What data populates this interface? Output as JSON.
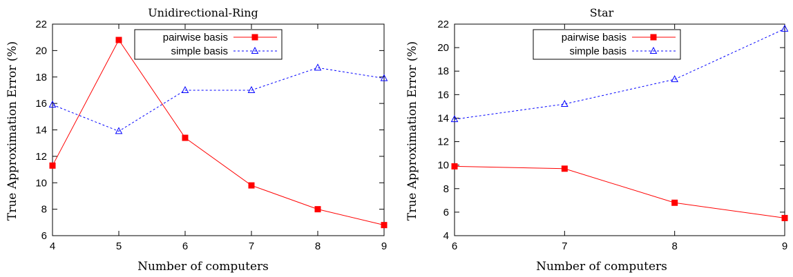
{
  "chart_data": [
    {
      "type": "line",
      "title": "Unidirectional-Ring",
      "xlabel": "Number of computers",
      "ylabel": "True Approximation Error (%)",
      "x": [
        4,
        5,
        6,
        7,
        8,
        9
      ],
      "xlim": [
        4,
        9
      ],
      "ylim": [
        6,
        22
      ],
      "xticks": [
        4,
        5,
        6,
        7,
        8,
        9
      ],
      "yticks": [
        6,
        8,
        10,
        12,
        14,
        16,
        18,
        20,
        22
      ],
      "grid": false,
      "legend_position": "top-center",
      "series": [
        {
          "name": "pairwise basis",
          "values": [
            11.3,
            20.8,
            13.4,
            9.8,
            8.0,
            6.8
          ],
          "color": "#ff0000",
          "marker": "square",
          "line": "solid"
        },
        {
          "name": "simple basis",
          "values": [
            15.9,
            13.9,
            17.0,
            17.0,
            18.7,
            17.9
          ],
          "color": "#0000ff",
          "marker": "triangle",
          "line": "dashed"
        }
      ]
    },
    {
      "type": "line",
      "title": "Star",
      "xlabel": "Number of computers",
      "ylabel": "True Approximation Error (%)",
      "x": [
        6,
        7,
        8,
        9
      ],
      "xlim": [
        6,
        9
      ],
      "ylim": [
        4,
        22
      ],
      "xticks": [
        6,
        7,
        8,
        9
      ],
      "yticks": [
        4,
        6,
        8,
        10,
        12,
        14,
        16,
        18,
        20,
        22
      ],
      "grid": false,
      "legend_position": "top-center",
      "series": [
        {
          "name": "pairwise basis",
          "values": [
            9.9,
            9.7,
            6.8,
            5.5
          ],
          "color": "#ff0000",
          "marker": "square",
          "line": "solid"
        },
        {
          "name": "simple basis",
          "values": [
            13.9,
            15.2,
            17.3,
            21.6
          ],
          "color": "#0000ff",
          "marker": "triangle",
          "line": "dashed"
        }
      ]
    }
  ]
}
